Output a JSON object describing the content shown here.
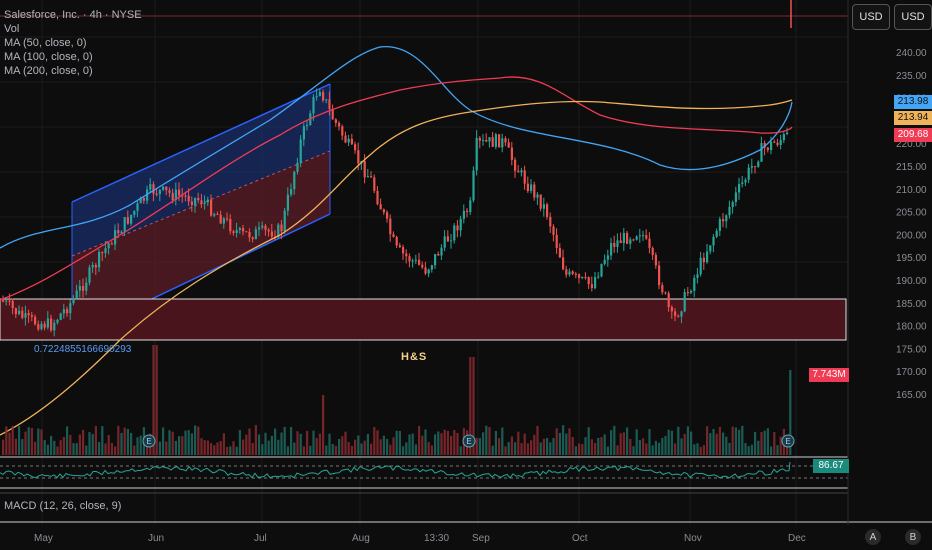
{
  "legend": {
    "symbol_line": "Salesforce, Inc. · 4h · NYSE",
    "vol": "Vol",
    "ma50": "MA (50, close, 0)",
    "ma100": "MA (100, close, 0)",
    "ma200": "MA (200, close, 0)",
    "macd": "MACD (12, 26, close, 9)"
  },
  "currency_buttons": [
    "USD",
    "USD"
  ],
  "price_tags": {
    "blue": "213.98",
    "orange": "213.94",
    "red": "209.68",
    "volume": "7.743M",
    "rsi": "86.67"
  },
  "annotations": {
    "pattern": "H&S",
    "channel_low": "0.7224855166690293"
  },
  "time_labels": [
    "May",
    "Jun",
    "Jul",
    "Aug",
    "13:30",
    "Sep",
    "Oct",
    "Nov",
    "Dec"
  ],
  "price_axis": [
    "240.00",
    "235.00",
    "230.00",
    "225.00",
    "220.00",
    "215.00",
    "210.00",
    "205.00",
    "200.00",
    "195.00",
    "190.00",
    "185.00",
    "180.00",
    "175.00",
    "170.00",
    "165.00"
  ],
  "nav_buttons": [
    "A",
    "B"
  ],
  "colors": {
    "up": "#26a69a",
    "down": "#ef5350",
    "ma50": "#42a5f5",
    "ma100": "#ef3b54",
    "ma200": "#f0b35a",
    "channel_blue": "#2962ff",
    "zone": "#5a1a22"
  },
  "chart_data": {
    "type": "line",
    "x": [
      "May",
      "Jun",
      "Jul",
      "Aug",
      "Sep",
      "Oct",
      "Nov",
      "Dec"
    ],
    "ylim": [
      165,
      240
    ],
    "series": [
      {
        "values": [
          194,
          211,
          226,
          212,
          218,
          200,
          195,
          214
        ]
      },
      {
        "values": [
          207,
          215,
          228,
          236,
          230,
          225,
          218,
          214
        ]
      },
      {
        "values": [
          225,
          230,
          236,
          234,
          230,
          226,
          211,
          210
        ]
      },
      {
        "values": [
          174,
          185,
          200,
          222,
          229,
          231,
          229,
          214
        ]
      }
    ]
  }
}
